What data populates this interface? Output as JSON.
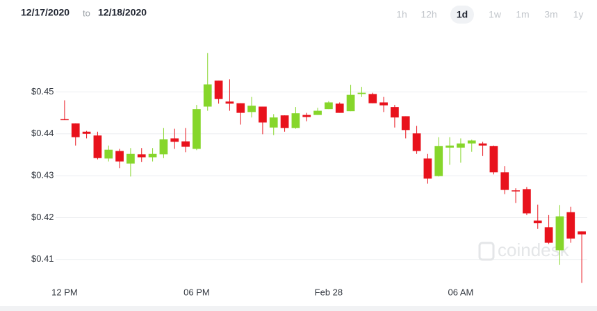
{
  "header": {
    "from": "12/17/2020",
    "separator": "to",
    "to": "12/18/2020"
  },
  "ranges": [
    "1h",
    "12h",
    "1d",
    "1w",
    "1m",
    "3m",
    "1y"
  ],
  "active_range": "1d",
  "watermark": "coindesk",
  "chart_data": {
    "type": "candlestick",
    "categories": [
      null,
      null,
      null,
      null,
      null,
      null,
      null,
      null,
      null,
      null,
      null,
      null,
      null,
      null,
      null,
      null,
      null,
      null,
      null,
      null,
      null,
      null,
      null,
      null,
      null,
      null,
      null,
      null,
      null,
      null,
      null,
      null,
      null,
      null,
      null,
      null,
      null,
      null,
      null,
      null,
      null,
      null,
      null,
      null,
      null,
      null,
      null,
      null
    ],
    "open": [
      0.4435,
      0.4425,
      0.4405,
      0.4396,
      0.4341,
      0.4359,
      0.4329,
      0.4351,
      0.4344,
      0.4351,
      0.4389,
      0.4382,
      0.4364,
      0.4465,
      0.4527,
      0.4477,
      0.4473,
      0.4452,
      0.4465,
      0.4415,
      0.4444,
      0.4414,
      0.4445,
      0.4445,
      0.4459,
      0.4472,
      0.4454,
      0.4495,
      0.4495,
      0.4475,
      0.4464,
      0.4442,
      0.4401,
      0.4341,
      0.4299,
      0.4367,
      0.4367,
      0.4377,
      0.4377,
      0.4371,
      0.4308,
      0.4265,
      0.4268,
      0.4193,
      0.4177,
      0.4122,
      0.4213,
      0.4167
    ],
    "high": [
      0.448,
      0.4425,
      0.4407,
      0.4405,
      0.4372,
      0.4364,
      0.4366,
      0.4366,
      0.4366,
      0.4414,
      0.4412,
      0.4414,
      0.4469,
      0.4593,
      0.4527,
      0.453,
      0.4473,
      0.4488,
      0.4465,
      0.4447,
      0.4444,
      0.4464,
      0.445,
      0.4462,
      0.4478,
      0.4475,
      0.4517,
      0.4512,
      0.4498,
      0.4488,
      0.4469,
      0.4442,
      0.4419,
      0.4352,
      0.4392,
      0.4392,
      0.4389,
      0.4386,
      0.4381,
      0.4372,
      0.4323,
      0.427,
      0.4273,
      0.4231,
      0.4206,
      0.423,
      0.4226,
      0.4167
    ],
    "low": [
      0.4434,
      0.4372,
      0.4389,
      0.4339,
      0.4334,
      0.4318,
      0.4298,
      0.4333,
      0.4334,
      0.4342,
      0.4364,
      0.4356,
      0.4361,
      0.4455,
      0.4472,
      0.4455,
      0.4422,
      0.4439,
      0.4399,
      0.4397,
      0.4405,
      0.4412,
      0.443,
      0.4445,
      0.4459,
      0.445,
      0.4454,
      0.4488,
      0.4473,
      0.4452,
      0.4415,
      0.4389,
      0.4352,
      0.4281,
      0.4298,
      0.4326,
      0.4331,
      0.4357,
      0.4347,
      0.4303,
      0.4256,
      0.4235,
      0.4206,
      0.4173,
      0.4137,
      0.4087,
      0.414,
      0.4044
    ],
    "close": [
      0.4434,
      0.4392,
      0.44,
      0.4342,
      0.4362,
      0.4334,
      0.4352,
      0.4344,
      0.4352,
      0.4387,
      0.4381,
      0.4369,
      0.4459,
      0.4518,
      0.4483,
      0.4472,
      0.445,
      0.4467,
      0.4427,
      0.4439,
      0.4414,
      0.4449,
      0.444,
      0.4455,
      0.4475,
      0.445,
      0.4493,
      0.4498,
      0.4473,
      0.4468,
      0.4439,
      0.4409,
      0.4359,
      0.4293,
      0.4371,
      0.4372,
      0.4377,
      0.4384,
      0.4372,
      0.4308,
      0.4266,
      0.4264,
      0.421,
      0.4187,
      0.414,
      0.4203,
      0.415,
      0.416
    ],
    "up_color": "#86d62b",
    "down_color": "#e8121c",
    "ylim": [
      0.404,
      0.462
    ],
    "yticks": [
      {
        "value": 0.41,
        "label": "$0.41"
      },
      {
        "value": 0.42,
        "label": "$0.42"
      },
      {
        "value": 0.43,
        "label": "$0.43"
      },
      {
        "value": 0.44,
        "label": "$0.44"
      },
      {
        "value": 0.45,
        "label": "$0.45"
      }
    ],
    "xticks": [
      {
        "value": 0,
        "label": "12 PM"
      },
      {
        "value": 12,
        "label": "06 PM"
      },
      {
        "value": 24,
        "label": "Feb 28"
      },
      {
        "value": 36,
        "label": "06 AM"
      }
    ],
    "grid": true
  }
}
